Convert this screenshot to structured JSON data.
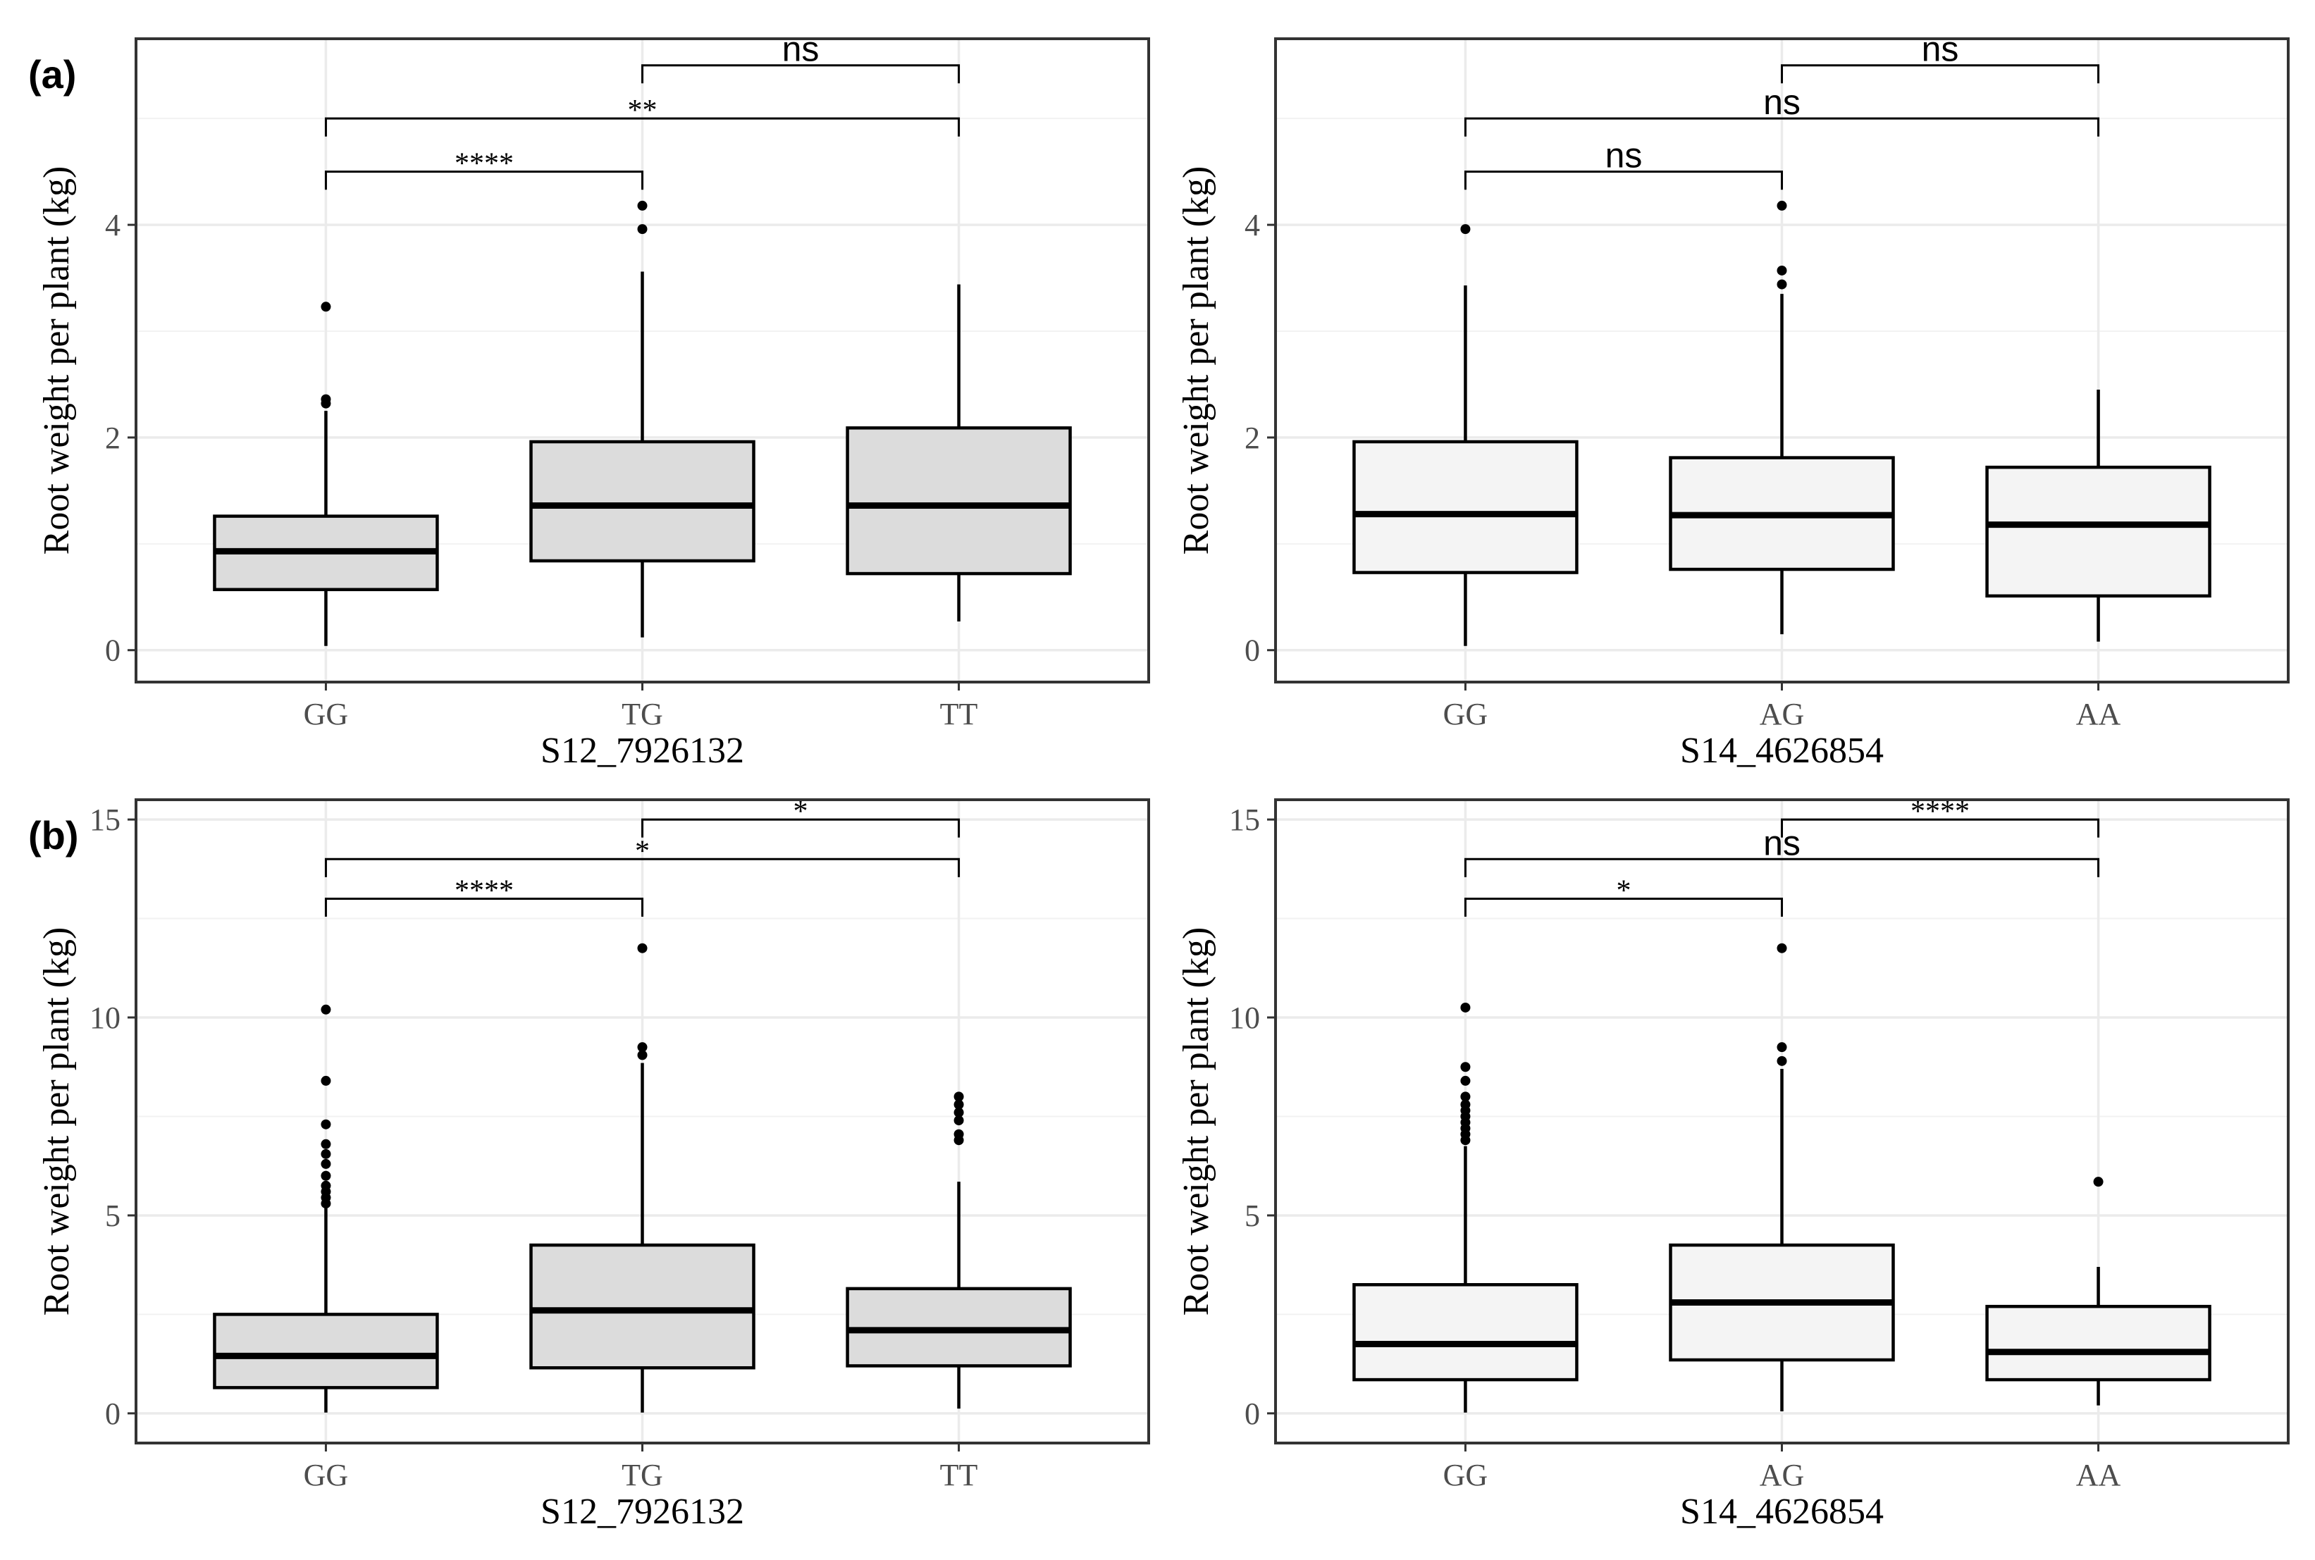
{
  "panel_labels": [
    "(a)",
    "(b)"
  ],
  "chart_data": [
    {
      "type": "boxplot",
      "panel": "(a)",
      "xlabel": "S12_7926132",
      "ylabel": "Root weight per plant (kg)",
      "ylim": [
        -0.3,
        5.75
      ],
      "yticks": [
        0,
        2,
        4
      ],
      "fill": "#dcdcdc",
      "categories": [
        "GG",
        "TG",
        "TT"
      ],
      "boxes": [
        {
          "category": "GG",
          "q1": 0.57,
          "median": 0.93,
          "q3": 1.26,
          "whisker_low": 0.04,
          "whisker_high": 2.25,
          "outliers": [
            2.32,
            2.36,
            3.23
          ]
        },
        {
          "category": "TG",
          "q1": 0.84,
          "median": 1.36,
          "q3": 1.96,
          "whisker_low": 0.12,
          "whisker_high": 3.56,
          "outliers": [
            3.96,
            4.18
          ]
        },
        {
          "category": "TT",
          "q1": 0.72,
          "median": 1.36,
          "q3": 2.09,
          "whisker_low": 0.27,
          "whisker_high": 3.44,
          "outliers": []
        }
      ],
      "comparisons": [
        {
          "from": "TG",
          "to": "TT",
          "y": 5.5,
          "label": "ns"
        },
        {
          "from": "GG",
          "to": "TT",
          "y": 5.0,
          "label": "**"
        },
        {
          "from": "GG",
          "to": "TG",
          "y": 4.5,
          "label": "****"
        }
      ]
    },
    {
      "type": "boxplot",
      "panel": "(a)",
      "xlabel": "S14_4626854",
      "ylabel": "Root weight per plant (kg)",
      "ylim": [
        -0.3,
        5.75
      ],
      "yticks": [
        0,
        2,
        4
      ],
      "fill": "#f4f4f4",
      "categories": [
        "GG",
        "AG",
        "AA"
      ],
      "boxes": [
        {
          "category": "GG",
          "q1": 0.73,
          "median": 1.28,
          "q3": 1.96,
          "whisker_low": 0.04,
          "whisker_high": 3.43,
          "outliers": [
            3.96
          ]
        },
        {
          "category": "AG",
          "q1": 0.76,
          "median": 1.27,
          "q3": 1.81,
          "whisker_low": 0.15,
          "whisker_high": 3.35,
          "outliers": [
            3.44,
            3.57,
            4.18
          ]
        },
        {
          "category": "AA",
          "q1": 0.51,
          "median": 1.18,
          "q3": 1.72,
          "whisker_low": 0.08,
          "whisker_high": 2.45,
          "outliers": []
        }
      ],
      "comparisons": [
        {
          "from": "AG",
          "to": "AA",
          "y": 5.5,
          "label": "ns"
        },
        {
          "from": "GG",
          "to": "AA",
          "y": 5.0,
          "label": "ns"
        },
        {
          "from": "GG",
          "to": "AG",
          "y": 4.5,
          "label": "ns"
        }
      ]
    },
    {
      "type": "boxplot",
      "panel": "(b)",
      "xlabel": "S12_7926132",
      "ylabel": "Root weight per plant (kg)",
      "ylim": [
        -0.75,
        15.5
      ],
      "yticks": [
        0,
        5,
        10,
        15
      ],
      "fill": "#dcdcdc",
      "categories": [
        "GG",
        "TG",
        "TT"
      ],
      "boxes": [
        {
          "category": "GG",
          "q1": 0.65,
          "median": 1.45,
          "q3": 2.5,
          "whisker_low": 0.02,
          "whisker_high": 5.2,
          "outliers": [
            5.3,
            5.45,
            5.6,
            5.75,
            6.0,
            6.3,
            6.55,
            6.8,
            7.3,
            8.4,
            10.2
          ]
        },
        {
          "category": "TG",
          "q1": 1.15,
          "median": 2.6,
          "q3": 4.25,
          "whisker_low": 0.02,
          "whisker_high": 8.85,
          "outliers": [
            9.05,
            9.25,
            11.75
          ]
        },
        {
          "category": "TT",
          "q1": 1.2,
          "median": 2.1,
          "q3": 3.15,
          "whisker_low": 0.12,
          "whisker_high": 5.85,
          "outliers": [
            6.9,
            7.05,
            7.4,
            7.6,
            7.8,
            8.0
          ]
        }
      ],
      "comparisons": [
        {
          "from": "TG",
          "to": "TT",
          "y": 15.0,
          "label": "*"
        },
        {
          "from": "GG",
          "to": "TT",
          "y": 14.0,
          "label": "*"
        },
        {
          "from": "GG",
          "to": "TG",
          "y": 13.0,
          "label": "****"
        }
      ]
    },
    {
      "type": "boxplot",
      "panel": "(b)",
      "xlabel": "S14_4626854",
      "ylabel": "Root weight per plant (kg)",
      "ylim": [
        -0.75,
        15.5
      ],
      "yticks": [
        0,
        5,
        10,
        15
      ],
      "fill": "#f4f4f4",
      "categories": [
        "GG",
        "AG",
        "AA"
      ],
      "boxes": [
        {
          "category": "GG",
          "q1": 0.85,
          "median": 1.75,
          "q3": 3.25,
          "whisker_low": 0.02,
          "whisker_high": 6.75,
          "outliers": [
            6.9,
            7.05,
            7.2,
            7.35,
            7.5,
            7.65,
            7.8,
            8.0,
            8.4,
            8.75,
            10.25
          ]
        },
        {
          "category": "AG",
          "q1": 1.35,
          "median": 2.8,
          "q3": 4.25,
          "whisker_low": 0.05,
          "whisker_high": 8.7,
          "outliers": [
            8.9,
            9.25,
            11.75
          ]
        },
        {
          "category": "AA",
          "q1": 0.85,
          "median": 1.55,
          "q3": 2.7,
          "whisker_low": 0.2,
          "whisker_high": 3.7,
          "outliers": [
            5.85
          ]
        }
      ],
      "comparisons": [
        {
          "from": "AG",
          "to": "AA",
          "y": 15.0,
          "label": "****"
        },
        {
          "from": "GG",
          "to": "AA",
          "y": 14.0,
          "label": "ns"
        },
        {
          "from": "GG",
          "to": "AG",
          "y": 13.0,
          "label": "*"
        }
      ]
    }
  ]
}
